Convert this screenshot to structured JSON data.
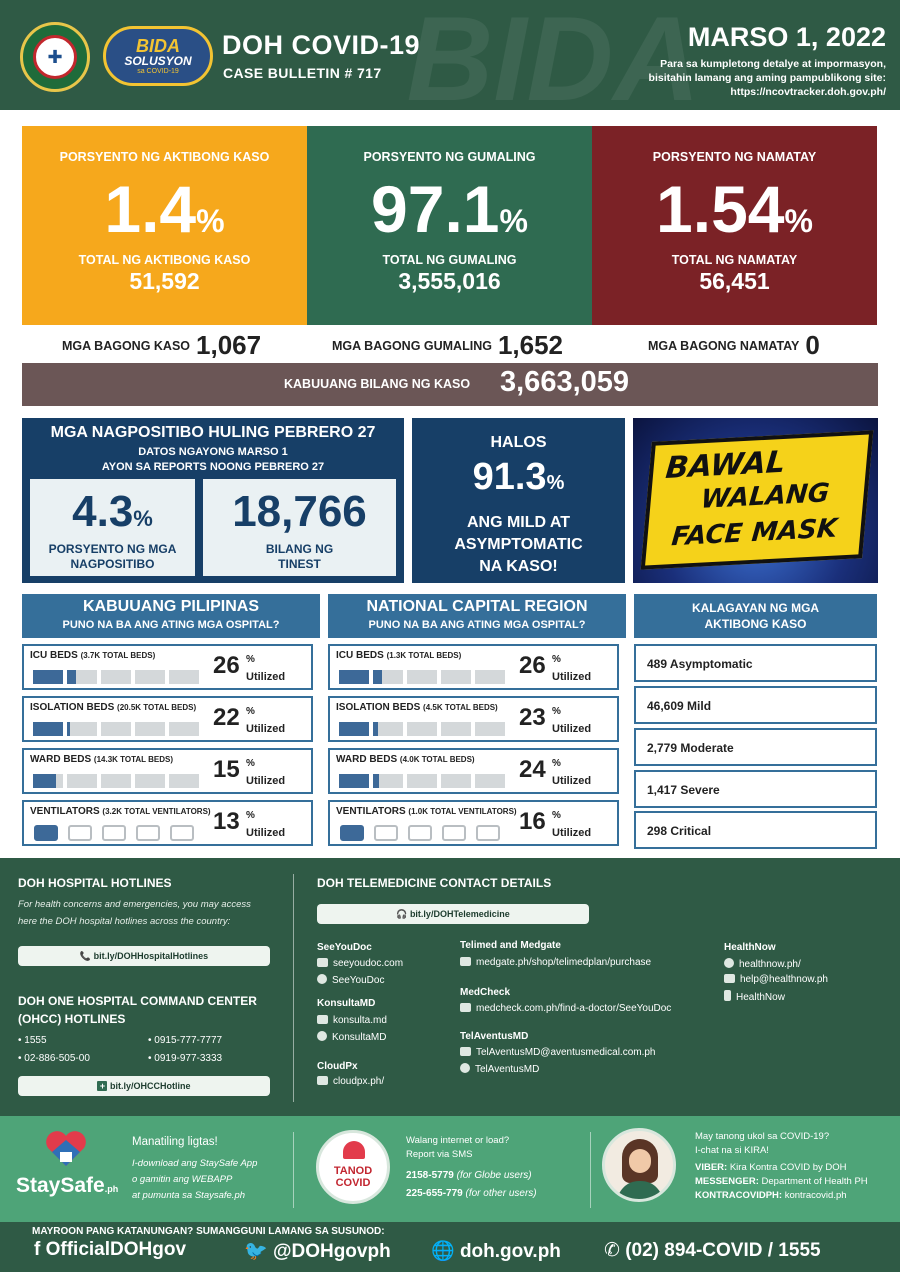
{
  "header": {
    "title": "DOH COVID-19",
    "subtitle": "CASE BULLETIN # 717",
    "date": "MARSO 1, 2022",
    "info_line1": "Para sa kumpletong detalye at impormasyon,",
    "info_line2": "bisitahin lamang ang aming pampublikong site:",
    "info_url": "https://ncovtracker.doh.gov.ph/",
    "logo_bida": "BIDA",
    "logo_solusyon": "SOLUSYON",
    "logo_covid": "sa COVID-19",
    "bg_mark": "BIDA"
  },
  "stats": {
    "active": {
      "label": "PORSYENTO NG AKTIBONG KASO",
      "percent": "1.4",
      "total_label": "TOTAL NG AKTIBONG KASO",
      "total": "51,592",
      "color": "#f6a81c"
    },
    "recovered": {
      "label": "PORSYENTO NG GUMALING",
      "percent": "97.1",
      "total_label": "TOTAL NG GUMALING",
      "total": "3,555,016",
      "color": "#2f6b51"
    },
    "deaths": {
      "label": "PORSYENTO NG NAMATAY",
      "percent": "1.54",
      "total_label": "TOTAL NG NAMATAY",
      "total": "56,451",
      "color": "#7b2226"
    },
    "percent_sign": "%"
  },
  "new": {
    "cases_label": "MGA BAGONG KASO",
    "cases": "1,067",
    "recovered_label": "MGA BAGONG GUMALING",
    "recovered": "1,652",
    "deaths_label": "MGA BAGONG NAMATAY",
    "deaths": "0"
  },
  "total": {
    "label": "KABUUANG BILANG NG KASO",
    "value": "3,663,059"
  },
  "positivity": {
    "title": "MGA NAGPOSITIBO HULING PEBRERO 27",
    "sub1": "DATOS NGAYONG MARSO 1",
    "sub2": "AYON SA REPORTS NOONG PEBRERO 27",
    "rate": "4.3",
    "rate_label1": "PORSYENTO NG MGA",
    "rate_label2": "NAGPOSITIBO",
    "tested": "18,766",
    "tested_label1": "BILANG NG",
    "tested_label2": "TINEST"
  },
  "mild": {
    "t1": "HALOS",
    "percent": "91.3",
    "t2": "ANG MILD AT",
    "t3": "ASYMPTOMATIC",
    "t4": "NA KASO!"
  },
  "mask": {
    "l1": "BAWAL",
    "l2": "WALANG",
    "l3": "FACE MASK"
  },
  "hospital": {
    "utilized": "Utilized",
    "ph": {
      "title": "KABUUANG PILIPINAS",
      "sub": "PUNO NA BA ANG ATING MGA OSPITAL?",
      "rows": [
        {
          "label": "ICU BEDS",
          "total": "(3.7K TOTAL BEDS)",
          "pct": "26",
          "value": 26
        },
        {
          "label": "ISOLATION BEDS",
          "total": "(20.5K TOTAL BEDS)",
          "pct": "22",
          "value": 22
        },
        {
          "label": "WARD BEDS",
          "total": "(14.3K TOTAL BEDS)",
          "pct": "15",
          "value": 15
        },
        {
          "label": "VENTILATORS",
          "total": "(3.2K TOTAL VENTILATORS)",
          "pct": "13",
          "value": 13
        }
      ]
    },
    "ncr": {
      "title": "NATIONAL CAPITAL REGION",
      "sub": "PUNO NA BA ANG ATING MGA OSPITAL?",
      "rows": [
        {
          "label": "ICU BEDS",
          "total": "(1.3K TOTAL BEDS)",
          "pct": "26",
          "value": 26
        },
        {
          "label": "ISOLATION BEDS",
          "total": "(4.5K TOTAL BEDS)",
          "pct": "23",
          "value": 23
        },
        {
          "label": "WARD BEDS",
          "total": "(4.0K TOTAL BEDS)",
          "pct": "24",
          "value": 24
        },
        {
          "label": "VENTILATORS",
          "total": "(1.0K TOTAL VENTILATORS)",
          "pct": "16",
          "value": 16
        }
      ]
    }
  },
  "status": {
    "title1": "KALAGAYAN NG MGA",
    "title2": "AKTIBONG KASO",
    "rows": [
      "489 Asymptomatic",
      "46,609 Mild",
      "2,779 Moderate",
      "1,417 Severe",
      "298 Critical"
    ]
  },
  "hotlines": {
    "title": "DOH HOSPITAL HOTLINES",
    "desc1": "For health concerns and emergencies, you may access",
    "desc2": "here the DOH hospital hotlines across the country:",
    "link": "bit.ly/DOHHospitalHotlines",
    "ohcc_title1": "DOH ONE HOSPITAL COMMAND CENTER",
    "ohcc_title2": "(OHCC) HOTLINES",
    "numbers": [
      "1555",
      "0915-777-7777",
      "02-886-505-00",
      "0919-977-3333"
    ],
    "ohcc_link": "bit.ly/OHCCHotline"
  },
  "telemed": {
    "title": "DOH TELEMEDICINE CONTACT DETAILS",
    "link": "bit.ly/DOHTelemedicine",
    "seeyoudoc": {
      "name": "SeeYouDoc",
      "web": "seeyoudoc.com",
      "msg": "SeeYouDoc"
    },
    "konsulta": {
      "name": "KonsultaMD",
      "web": "konsulta.md",
      "msg": "KonsultaMD"
    },
    "cloudpx": {
      "name": "CloudPx",
      "web": "cloudpx.ph/"
    },
    "telimed": {
      "name": "Telimed and Medgate",
      "web": "medgate.ph/shop/telimedplan/purchase"
    },
    "medcheck": {
      "name": "MedCheck",
      "web": "medcheck.com.ph/find-a-doctor/SeeYouDoc"
    },
    "telaventus": {
      "name": "TelAventusMD",
      "email": "TelAventusMD@aventusmedical.com.ph",
      "msg": "TelAventusMD"
    },
    "healthnow": {
      "name": "HealthNow",
      "web": "healthnow.ph/",
      "email": "help@healthnow.ph",
      "app": "HealthNow"
    }
  },
  "info": {
    "staysafe_logo": "StaySafe",
    "staysafe_logo_sub": ".ph",
    "staysafe_title": "Manatiling ligtas!",
    "staysafe_1": "I-download ang StaySafe App",
    "staysafe_2": "o gamitin ang WEBAPP",
    "staysafe_3": "at pumunta sa Staysafe.ph",
    "tanod_1": "TANOD",
    "tanod_2": "COVID",
    "sms_1": "Walang internet or load?",
    "sms_2": "Report via SMS",
    "sms_globe_num": "2158-5779",
    "sms_globe": "(for Globe users)",
    "sms_other_num": "225-655-779",
    "sms_other": "(for other users)",
    "kira_1": "May tanong ukol sa COVID-19?",
    "kira_2": "I-chat na si KIRA!",
    "viber_label": "VIBER:",
    "viber": "Kira Kontra COVID by DOH",
    "messenger_label": "MESSENGER:",
    "messenger": "Department of Health PH",
    "kontra_label": "KONTRACOVIDPH:",
    "kontra": "kontracovid.ph"
  },
  "footer": {
    "question": "MAYROON PANG KATANUNGAN? SUMANGGUNI LAMANG SA SUSUNOD:",
    "facebook": "OfficialDOHgov",
    "twitter": "@DOHgovph",
    "web": "doh.gov.ph",
    "phone": "(02) 894-COVID  /  1555"
  }
}
